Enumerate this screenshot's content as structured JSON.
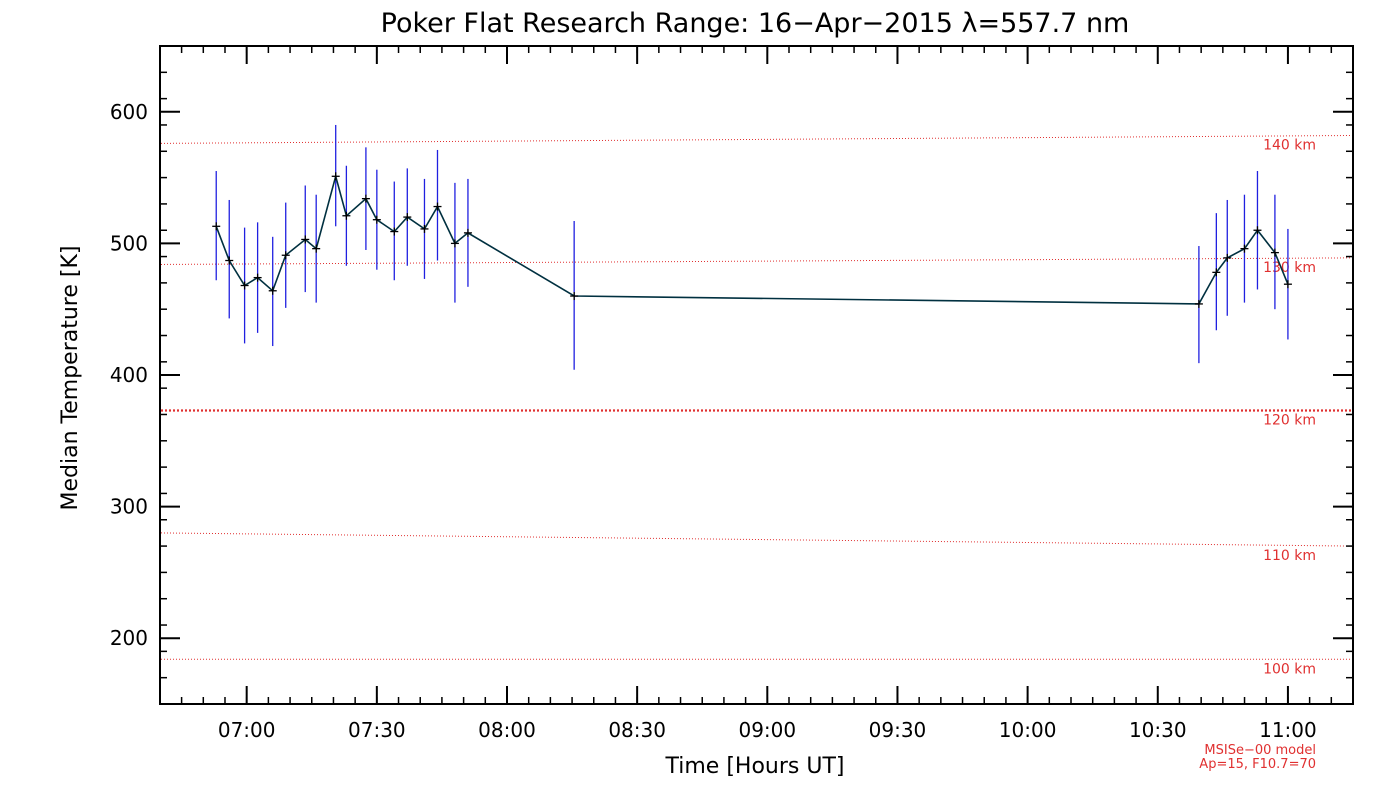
{
  "chart_data": {
    "type": "line",
    "title": "Poker Flat Research Range: 16−Apr−2015 λ=557.7 nm",
    "xlabel": "Time [Hours UT]",
    "ylabel": "Median Temperature [K]",
    "xlim": [
      6.667,
      11.25
    ],
    "ylim": [
      150,
      650
    ],
    "x_ticks": [
      {
        "value": 7.0,
        "label": "07:00"
      },
      {
        "value": 7.5,
        "label": "07:30"
      },
      {
        "value": 8.0,
        "label": "08:00"
      },
      {
        "value": 8.5,
        "label": "08:30"
      },
      {
        "value": 9.0,
        "label": "09:00"
      },
      {
        "value": 9.5,
        "label": "09:30"
      },
      {
        "value": 10.0,
        "label": "10:00"
      },
      {
        "value": 10.5,
        "label": "10:30"
      },
      {
        "value": 11.0,
        "label": "11:00"
      }
    ],
    "y_ticks": [
      {
        "value": 200,
        "label": "200"
      },
      {
        "value": 300,
        "label": "300"
      },
      {
        "value": 400,
        "label": "400"
      },
      {
        "value": 500,
        "label": "500"
      },
      {
        "value": 600,
        "label": "600"
      }
    ],
    "series": [
      {
        "color": "#003040",
        "error_color": "#2020e0",
        "points": [
          {
            "x": 6.883,
            "y": 513,
            "lo": 472,
            "hi": 555
          },
          {
            "x": 6.933,
            "y": 487,
            "lo": 443,
            "hi": 533
          },
          {
            "x": 6.992,
            "y": 468,
            "lo": 424,
            "hi": 512
          },
          {
            "x": 7.042,
            "y": 474,
            "lo": 432,
            "hi": 516
          },
          {
            "x": 7.1,
            "y": 464,
            "lo": 422,
            "hi": 505
          },
          {
            "x": 7.15,
            "y": 491,
            "lo": 451,
            "hi": 531
          },
          {
            "x": 7.225,
            "y": 503,
            "lo": 463,
            "hi": 544
          },
          {
            "x": 7.267,
            "y": 496,
            "lo": 455,
            "hi": 537
          },
          {
            "x": 7.342,
            "y": 551,
            "lo": 513,
            "hi": 590
          },
          {
            "x": 7.383,
            "y": 521,
            "lo": 483,
            "hi": 559
          },
          {
            "x": 7.458,
            "y": 534,
            "lo": 495,
            "hi": 573
          },
          {
            "x": 7.5,
            "y": 518,
            "lo": 480,
            "hi": 556
          },
          {
            "x": 7.567,
            "y": 509,
            "lo": 472,
            "hi": 547
          },
          {
            "x": 7.617,
            "y": 520,
            "lo": 483,
            "hi": 557
          },
          {
            "x": 7.683,
            "y": 511,
            "lo": 473,
            "hi": 549
          },
          {
            "x": 7.733,
            "y": 528,
            "lo": 487,
            "hi": 571
          },
          {
            "x": 7.8,
            "y": 500,
            "lo": 455,
            "hi": 546
          },
          {
            "x": 7.85,
            "y": 508,
            "lo": 467,
            "hi": 549
          },
          {
            "x": 8.258,
            "y": 460,
            "lo": 404,
            "hi": 517
          },
          {
            "x": 10.658,
            "y": 454,
            "lo": 409,
            "hi": 498
          },
          {
            "x": 10.725,
            "y": 478,
            "lo": 434,
            "hi": 523
          },
          {
            "x": 10.767,
            "y": 489,
            "lo": 445,
            "hi": 533
          },
          {
            "x": 10.833,
            "y": 496,
            "lo": 455,
            "hi": 537
          },
          {
            "x": 10.883,
            "y": 510,
            "lo": 465,
            "hi": 555
          },
          {
            "x": 10.95,
            "y": 493,
            "lo": 450,
            "hi": 537
          },
          {
            "x": 11.0,
            "y": 469,
            "lo": 427,
            "hi": 511
          }
        ]
      }
    ],
    "model_lines": [
      {
        "label": "100 km",
        "start": 184,
        "end": 184,
        "style": "dotted-thin"
      },
      {
        "label": "110 km",
        "start": 280,
        "end": 270,
        "style": "dotted-thin"
      },
      {
        "label": "120 km",
        "start": 373,
        "end": 373,
        "style": "dotted-thick"
      },
      {
        "label": "130 km",
        "start": 484,
        "end": 489,
        "style": "dotted-thin"
      },
      {
        "label": "140 km",
        "start": 576,
        "end": 582,
        "style": "dotted-thin"
      }
    ],
    "model_lines_color": "#e03030",
    "model_note": [
      "MSISe−00 model",
      "Ap=15, F10.7=70"
    ],
    "grid": false,
    "legend": "none"
  }
}
